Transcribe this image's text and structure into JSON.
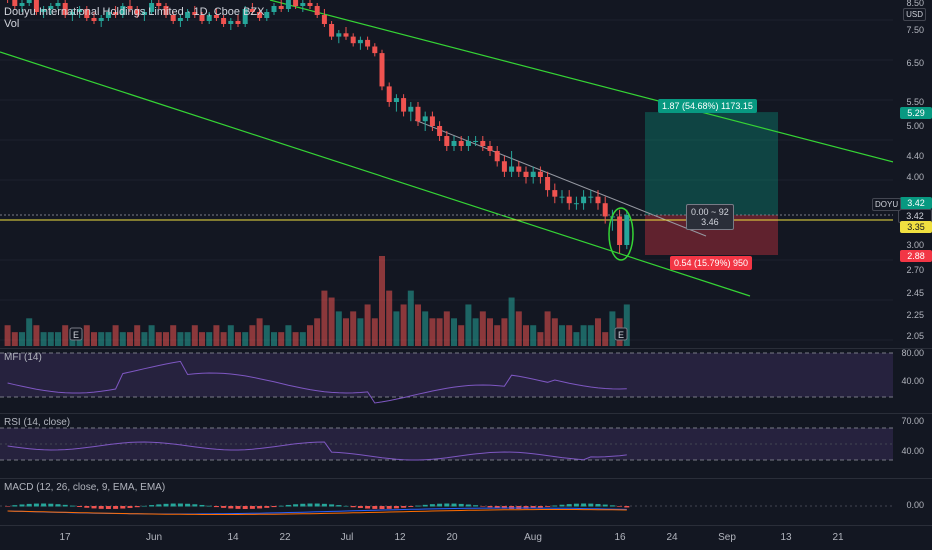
{
  "chart": {
    "title": "Douyu International Holdings Limited · 1D, Cboe BZX",
    "volume_label": "Vol",
    "colors": {
      "up": "#26a69a",
      "down": "#ef5350",
      "channel": "#35d435",
      "hline": "#f0e040"
    }
  },
  "price_axis": {
    "labels": [
      "8.50",
      "7.50",
      "6.50",
      "5.50",
      "5.00",
      "4.40",
      "4.00",
      "3.00",
      "2.70",
      "2.45",
      "2.25",
      "2.05"
    ],
    "usd_label": "USD"
  },
  "price_tags": {
    "symbol": "DOYU",
    "current": "3.42",
    "take_profit": "5.29",
    "entry": "3.42",
    "entry_alt": "3.35",
    "stop": "2.88"
  },
  "position": {
    "target_text": "1.87 (54.68%) 1173.15",
    "stop_text": "0.54 (15.79%) 950",
    "center_line1": "0.00 ~ 92",
    "center_line2": "3.46"
  },
  "indicators": {
    "mfi_label": "MFI (14)",
    "mfi_ticks": [
      "80.00",
      "40.00"
    ],
    "rsi_label": "RSI (14, close)",
    "rsi_ticks": [
      "70.00",
      "40.00"
    ],
    "macd_label": "MACD (12, 26, close, 9, EMA, EMA)",
    "macd_ticks": [
      "0.00"
    ]
  },
  "time_axis": {
    "labels": [
      "17",
      "Jun",
      "14",
      "22",
      "Jul",
      "12",
      "20",
      "Aug",
      "16",
      "24",
      "Sep",
      "13",
      "21"
    ]
  },
  "earnings_marker": "E",
  "chart_data": {
    "type": "candlestick",
    "ohlc": [
      [
        8.6,
        8.7,
        8.4,
        8.5
      ],
      [
        8.5,
        8.6,
        8.2,
        8.3
      ],
      [
        8.3,
        8.5,
        8.1,
        8.4
      ],
      [
        8.4,
        8.6,
        8.3,
        8.5
      ],
      [
        8.5,
        8.6,
        8.0,
        8.1
      ],
      [
        8.1,
        8.3,
        7.9,
        8.2
      ],
      [
        8.2,
        8.4,
        8.0,
        8.3
      ],
      [
        8.3,
        8.5,
        8.2,
        8.4
      ],
      [
        8.4,
        8.5,
        7.9,
        8.0
      ],
      [
        8.0,
        8.2,
        7.8,
        8.1
      ],
      [
        8.1,
        8.3,
        7.9,
        8.2
      ],
      [
        8.2,
        8.3,
        7.8,
        7.9
      ],
      [
        7.9,
        8.1,
        7.7,
        7.8
      ],
      [
        7.8,
        8.0,
        7.6,
        7.9
      ],
      [
        7.9,
        8.2,
        7.8,
        8.1
      ],
      [
        8.1,
        8.3,
        7.9,
        8.0
      ],
      [
        8.0,
        8.4,
        7.9,
        8.3
      ],
      [
        8.3,
        8.5,
        8.1,
        8.2
      ],
      [
        8.2,
        8.3,
        7.9,
        8.0
      ],
      [
        8.0,
        8.2,
        7.8,
        8.1
      ],
      [
        8.1,
        8.5,
        8.0,
        8.4
      ],
      [
        8.4,
        8.6,
        8.2,
        8.3
      ],
      [
        8.3,
        8.4,
        7.9,
        8.0
      ],
      [
        8.0,
        8.1,
        7.7,
        7.8
      ],
      [
        7.8,
        8.0,
        7.6,
        7.9
      ],
      [
        7.9,
        8.2,
        7.8,
        8.1
      ],
      [
        8.1,
        8.3,
        7.9,
        8.0
      ],
      [
        8.0,
        8.1,
        7.7,
        7.8
      ],
      [
        7.8,
        8.1,
        7.7,
        8.0
      ],
      [
        8.0,
        8.2,
        7.8,
        7.9
      ],
      [
        7.9,
        8.0,
        7.6,
        7.7
      ],
      [
        7.7,
        7.9,
        7.5,
        7.8
      ],
      [
        7.8,
        8.0,
        7.6,
        7.7
      ],
      [
        7.7,
        8.3,
        7.6,
        8.2
      ],
      [
        8.2,
        8.4,
        8.0,
        8.1
      ],
      [
        8.1,
        8.2,
        7.8,
        7.9
      ],
      [
        7.9,
        8.2,
        7.8,
        8.1
      ],
      [
        8.1,
        8.4,
        8.0,
        8.3
      ],
      [
        8.3,
        8.5,
        8.1,
        8.2
      ],
      [
        8.2,
        8.6,
        8.1,
        8.5
      ],
      [
        8.5,
        8.7,
        8.2,
        8.3
      ],
      [
        8.3,
        8.5,
        8.1,
        8.4
      ],
      [
        8.4,
        8.6,
        8.2,
        8.3
      ],
      [
        8.3,
        8.4,
        7.9,
        8.0
      ],
      [
        8.0,
        8.2,
        7.6,
        7.7
      ],
      [
        7.7,
        7.8,
        7.2,
        7.3
      ],
      [
        7.3,
        7.5,
        7.1,
        7.4
      ],
      [
        7.4,
        7.6,
        7.2,
        7.3
      ],
      [
        7.3,
        7.4,
        7.0,
        7.1
      ],
      [
        7.1,
        7.3,
        6.9,
        7.2
      ],
      [
        7.2,
        7.3,
        6.9,
        7.0
      ],
      [
        7.0,
        7.1,
        6.7,
        6.8
      ],
      [
        6.8,
        6.9,
        5.8,
        5.9
      ],
      [
        5.9,
        6.0,
        5.4,
        5.5
      ],
      [
        5.5,
        5.7,
        5.3,
        5.6
      ],
      [
        5.6,
        5.7,
        5.2,
        5.3
      ],
      [
        5.3,
        5.5,
        5.1,
        5.4
      ],
      [
        5.4,
        5.5,
        5.0,
        5.1
      ],
      [
        5.1,
        5.3,
        4.9,
        5.2
      ],
      [
        5.2,
        5.3,
        4.9,
        5.0
      ],
      [
        5.0,
        5.1,
        4.7,
        4.8
      ],
      [
        4.8,
        4.9,
        4.5,
        4.6
      ],
      [
        4.6,
        4.8,
        4.5,
        4.7
      ],
      [
        4.7,
        4.8,
        4.5,
        4.6
      ],
      [
        4.6,
        4.8,
        4.5,
        4.7
      ],
      [
        4.7,
        4.8,
        4.6,
        4.7
      ],
      [
        4.7,
        4.8,
        4.5,
        4.6
      ],
      [
        4.6,
        4.7,
        4.4,
        4.5
      ],
      [
        4.5,
        4.6,
        4.2,
        4.3
      ],
      [
        4.3,
        4.4,
        4.0,
        4.1
      ],
      [
        4.1,
        4.5,
        4.0,
        4.2
      ],
      [
        4.2,
        4.3,
        4.0,
        4.1
      ],
      [
        4.1,
        4.2,
        3.9,
        4.0
      ],
      [
        4.0,
        4.2,
        3.9,
        4.1
      ],
      [
        4.1,
        4.2,
        3.9,
        4.0
      ],
      [
        4.0,
        4.1,
        3.7,
        3.8
      ],
      [
        3.8,
        3.9,
        3.6,
        3.7
      ],
      [
        3.7,
        3.8,
        3.6,
        3.7
      ],
      [
        3.7,
        3.8,
        3.5,
        3.6
      ],
      [
        3.6,
        3.7,
        3.5,
        3.6
      ],
      [
        3.6,
        3.8,
        3.5,
        3.7
      ],
      [
        3.7,
        3.8,
        3.6,
        3.7
      ],
      [
        3.7,
        3.8,
        3.5,
        3.6
      ],
      [
        3.6,
        3.7,
        3.3,
        3.4
      ],
      [
        3.4,
        3.5,
        3.2,
        3.4
      ],
      [
        3.4,
        3.5,
        2.9,
        3.0
      ],
      [
        3.0,
        3.5,
        2.95,
        3.42
      ]
    ],
    "volume": [
      3,
      2,
      2,
      4,
      3,
      2,
      2,
      2,
      3,
      2,
      2,
      3,
      2,
      2,
      2,
      3,
      2,
      2,
      3,
      2,
      3,
      2,
      2,
      3,
      2,
      2,
      3,
      2,
      2,
      3,
      2,
      3,
      2,
      2,
      3,
      4,
      3,
      2,
      2,
      3,
      2,
      2,
      3,
      4,
      8,
      7,
      5,
      4,
      5,
      4,
      6,
      4,
      13,
      8,
      5,
      6,
      8,
      6,
      5,
      4,
      4,
      5,
      4,
      3,
      6,
      4,
      5,
      4,
      3,
      4,
      7,
      5,
      3,
      3,
      2,
      5,
      4,
      3,
      3,
      2,
      3,
      3,
      4,
      2,
      5,
      4,
      6
    ]
  }
}
